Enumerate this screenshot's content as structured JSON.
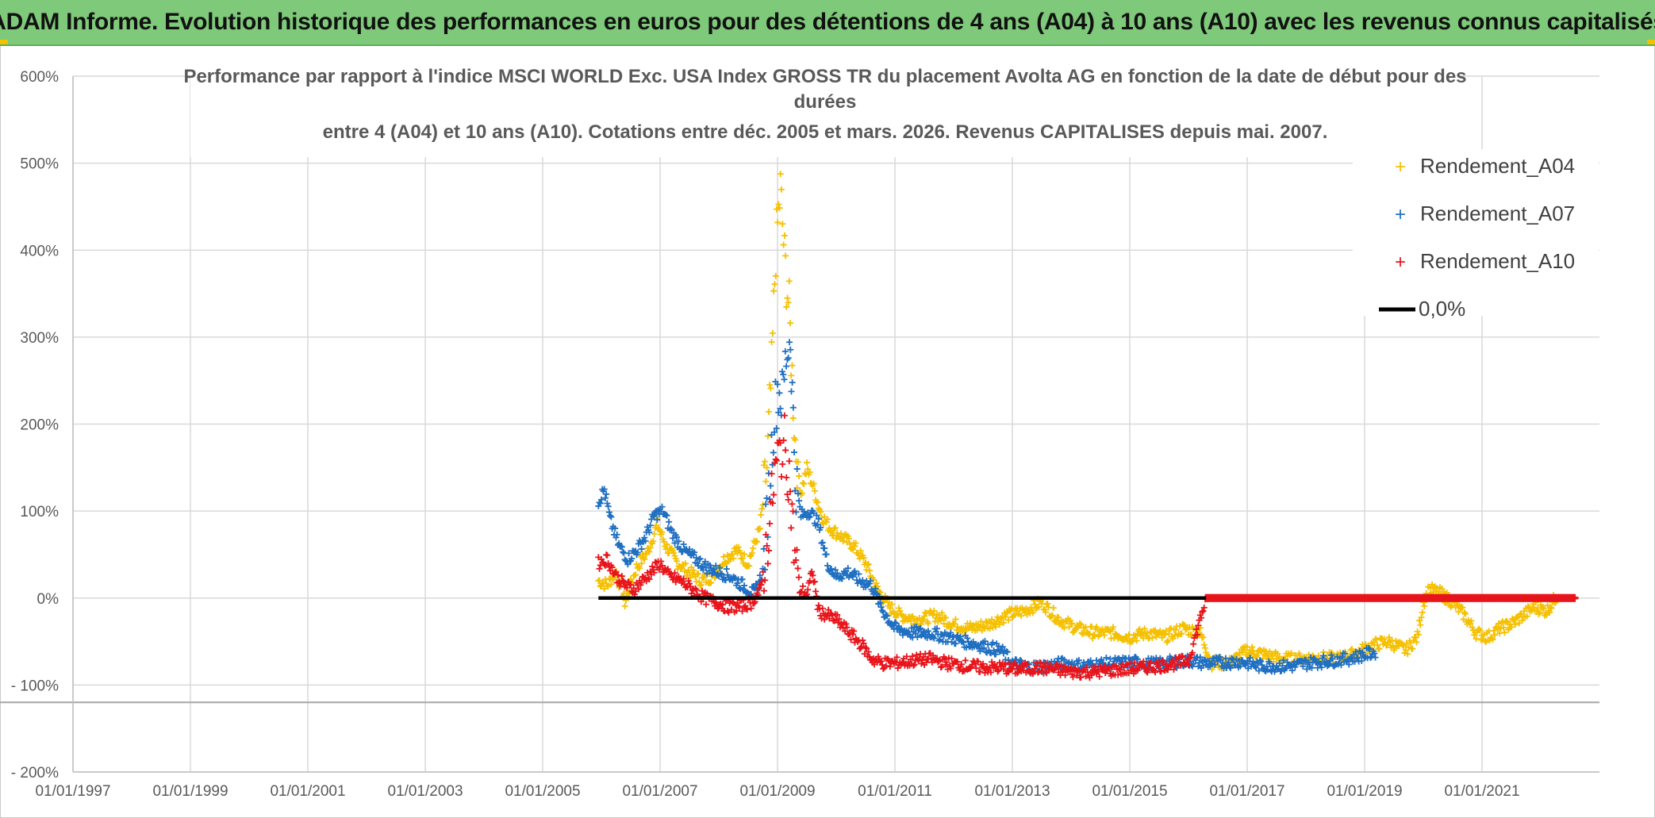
{
  "header": {
    "banner": "ADAM Informe. Evolution historique des performances en euros pour des détentions de 4 ans (A04) à 10 ans (A10) avec les revenus connus capitalisés"
  },
  "colors": {
    "banner_bg": "#7fc97a",
    "a04": "#f5c000",
    "a07": "#1f6fc2",
    "a10": "#e8141b",
    "zero": "#000000",
    "grid": "#d9d9d9"
  },
  "chart_data": {
    "type": "scatter",
    "title_lines": [
      "Performance par rapport à l'indice MSCI WORLD Exc. USA Index GROSS TR  du placement Avolta AG en fonction de la date de début pour des",
      "durées",
      "entre 4 (A04) et 10 ans (A10). Cotations entre déc. 2005 et mars. 2026. Revenus CAPITALISES depuis mai. 2007."
    ],
    "xlabel": "",
    "ylabel": "",
    "x_range_years": [
      1997.0,
      2023.0
    ],
    "ylim": [
      -200,
      600
    ],
    "y_ticks": [
      {
        "value": 600,
        "label": "600%"
      },
      {
        "value": 500,
        "label": "500%"
      },
      {
        "value": 400,
        "label": "400%"
      },
      {
        "value": 300,
        "label": "300%"
      },
      {
        "value": 200,
        "label": "200%"
      },
      {
        "value": 100,
        "label": "100%"
      },
      {
        "value": 0,
        "label": "0%"
      },
      {
        "value": -100,
        "label": "- 100%"
      },
      {
        "value": -200,
        "label": "- 200%"
      }
    ],
    "x_ticks": [
      {
        "year": 1997,
        "label": "01/01/1997"
      },
      {
        "year": 1999,
        "label": "01/01/1999"
      },
      {
        "year": 2001,
        "label": "01/01/2001"
      },
      {
        "year": 2003,
        "label": "01/01/2003"
      },
      {
        "year": 2005,
        "label": "01/01/2005"
      },
      {
        "year": 2007,
        "label": "01/01/2007"
      },
      {
        "year": 2009,
        "label": "01/01/2009"
      },
      {
        "year": 2011,
        "label": "01/01/2011"
      },
      {
        "year": 2013,
        "label": "01/01/2013"
      },
      {
        "year": 2015,
        "label": "01/01/2015"
      },
      {
        "year": 2017,
        "label": "01/01/2017"
      },
      {
        "year": 2019,
        "label": "01/01/2019"
      },
      {
        "year": 2021,
        "label": "01/01/2021"
      }
    ],
    "reference_line_value": -120,
    "legend_position": "top-right",
    "series": [
      {
        "name": "Rendement_A04",
        "color_key": "a04",
        "points": [
          [
            2005.95,
            20
          ],
          [
            2006.1,
            15
          ],
          [
            2006.25,
            30
          ],
          [
            2006.4,
            -5
          ],
          [
            2006.6,
            35
          ],
          [
            2006.8,
            55
          ],
          [
            2006.95,
            85
          ],
          [
            2007.1,
            60
          ],
          [
            2007.3,
            40
          ],
          [
            2007.5,
            30
          ],
          [
            2007.7,
            20
          ],
          [
            2007.9,
            25
          ],
          [
            2008.1,
            45
          ],
          [
            2008.3,
            55
          ],
          [
            2008.5,
            40
          ],
          [
            2008.7,
            80
          ],
          [
            2008.82,
            150
          ],
          [
            2008.9,
            260
          ],
          [
            2008.97,
            400
          ],
          [
            2009.05,
            470
          ],
          [
            2009.12,
            390
          ],
          [
            2009.2,
            330
          ],
          [
            2009.3,
            180
          ],
          [
            2009.4,
            120
          ],
          [
            2009.5,
            150
          ],
          [
            2009.6,
            130
          ],
          [
            2009.75,
            95
          ],
          [
            2009.9,
            80
          ],
          [
            2010.1,
            70
          ],
          [
            2010.3,
            60
          ],
          [
            2010.5,
            40
          ],
          [
            2010.7,
            10
          ],
          [
            2010.9,
            -10
          ],
          [
            2011.1,
            -20
          ],
          [
            2011.4,
            -25
          ],
          [
            2011.7,
            -20
          ],
          [
            2012.0,
            -30
          ],
          [
            2012.3,
            -35
          ],
          [
            2012.6,
            -30
          ],
          [
            2012.9,
            -20
          ],
          [
            2013.2,
            -15
          ],
          [
            2013.5,
            -5
          ],
          [
            2013.8,
            -25
          ],
          [
            2014.1,
            -35
          ],
          [
            2014.4,
            -40
          ],
          [
            2014.7,
            -40
          ],
          [
            2015.0,
            -45
          ],
          [
            2015.3,
            -40
          ],
          [
            2015.6,
            -45
          ],
          [
            2015.9,
            -35
          ],
          [
            2016.2,
            -40
          ],
          [
            2016.4,
            -75
          ],
          [
            2016.7,
            -75
          ],
          [
            2017.0,
            -60
          ],
          [
            2017.3,
            -65
          ],
          [
            2017.6,
            -70
          ],
          [
            2017.9,
            -70
          ],
          [
            2018.2,
            -68
          ],
          [
            2018.5,
            -70
          ],
          [
            2018.8,
            -65
          ],
          [
            2019.1,
            -55
          ],
          [
            2019.4,
            -50
          ],
          [
            2019.7,
            -60
          ],
          [
            2019.9,
            -45
          ],
          [
            2020.0,
            -5
          ],
          [
            2020.1,
            10
          ],
          [
            2020.3,
            5
          ],
          [
            2020.5,
            -5
          ],
          [
            2020.7,
            -20
          ],
          [
            2020.9,
            -40
          ],
          [
            2021.1,
            -45
          ],
          [
            2021.3,
            -35
          ],
          [
            2021.5,
            -30
          ],
          [
            2021.7,
            -20
          ],
          [
            2021.9,
            -10
          ],
          [
            2022.1,
            -15
          ],
          [
            2022.3,
            5
          ]
        ]
      },
      {
        "name": "Rendement_A07",
        "color_key": "a07",
        "points": [
          [
            2005.95,
            110
          ],
          [
            2006.05,
            125
          ],
          [
            2006.15,
            90
          ],
          [
            2006.3,
            60
          ],
          [
            2006.45,
            45
          ],
          [
            2006.6,
            55
          ],
          [
            2006.75,
            70
          ],
          [
            2006.9,
            95
          ],
          [
            2007.05,
            100
          ],
          [
            2007.2,
            75
          ],
          [
            2007.4,
            55
          ],
          [
            2007.6,
            45
          ],
          [
            2007.8,
            35
          ],
          [
            2008.0,
            30
          ],
          [
            2008.2,
            25
          ],
          [
            2008.4,
            15
          ],
          [
            2008.6,
            5
          ],
          [
            2008.75,
            30
          ],
          [
            2008.85,
            120
          ],
          [
            2008.93,
            200
          ],
          [
            2009.0,
            240
          ],
          [
            2009.08,
            230
          ],
          [
            2009.15,
            280
          ],
          [
            2009.22,
            300
          ],
          [
            2009.3,
            140
          ],
          [
            2009.4,
            95
          ],
          [
            2009.55,
            100
          ],
          [
            2009.7,
            85
          ],
          [
            2009.85,
            40
          ],
          [
            2010.0,
            25
          ],
          [
            2010.2,
            30
          ],
          [
            2010.4,
            20
          ],
          [
            2010.6,
            15
          ],
          [
            2010.8,
            -15
          ],
          [
            2011.0,
            -35
          ],
          [
            2011.3,
            -40
          ],
          [
            2011.6,
            -40
          ],
          [
            2011.9,
            -45
          ],
          [
            2012.2,
            -50
          ],
          [
            2012.5,
            -55
          ],
          [
            2012.8,
            -60
          ],
          [
            2013.0,
            -75
          ],
          [
            2013.3,
            -80
          ],
          [
            2013.6,
            -78
          ],
          [
            2013.9,
            -75
          ],
          [
            2014.2,
            -78
          ],
          [
            2014.5,
            -76
          ],
          [
            2014.8,
            -75
          ],
          [
            2015.1,
            -74
          ],
          [
            2015.4,
            -76
          ],
          [
            2015.7,
            -74
          ],
          [
            2016.0,
            -72
          ],
          [
            2016.3,
            -75
          ],
          [
            2016.6,
            -74
          ],
          [
            2016.9,
            -73
          ],
          [
            2017.2,
            -78
          ],
          [
            2017.5,
            -78
          ],
          [
            2017.8,
            -78
          ],
          [
            2018.1,
            -74
          ],
          [
            2018.4,
            -72
          ],
          [
            2018.7,
            -70
          ],
          [
            2019.0,
            -65
          ],
          [
            2019.2,
            -62
          ]
        ]
      },
      {
        "name": "Rendement_A10",
        "color_key": "a10",
        "points": [
          [
            2005.95,
            40
          ],
          [
            2006.1,
            45
          ],
          [
            2006.25,
            25
          ],
          [
            2006.4,
            15
          ],
          [
            2006.55,
            10
          ],
          [
            2006.7,
            20
          ],
          [
            2006.85,
            30
          ],
          [
            2007.0,
            40
          ],
          [
            2007.15,
            25
          ],
          [
            2007.35,
            20
          ],
          [
            2007.55,
            10
          ],
          [
            2007.75,
            0
          ],
          [
            2007.95,
            -5
          ],
          [
            2008.15,
            -10
          ],
          [
            2008.35,
            -10
          ],
          [
            2008.55,
            -5
          ],
          [
            2008.72,
            10
          ],
          [
            2008.82,
            60
          ],
          [
            2008.9,
            110
          ],
          [
            2008.97,
            150
          ],
          [
            2009.05,
            170
          ],
          [
            2009.12,
            175
          ],
          [
            2009.2,
            140
          ],
          [
            2009.28,
            60
          ],
          [
            2009.38,
            10
          ],
          [
            2009.5,
            5
          ],
          [
            2009.6,
            30
          ],
          [
            2009.7,
            -15
          ],
          [
            2009.85,
            -20
          ],
          [
            2010.0,
            -25
          ],
          [
            2010.15,
            -35
          ],
          [
            2010.3,
            -45
          ],
          [
            2010.45,
            -55
          ],
          [
            2010.6,
            -70
          ],
          [
            2010.8,
            -75
          ],
          [
            2011.0,
            -75
          ],
          [
            2011.3,
            -72
          ],
          [
            2011.6,
            -70
          ],
          [
            2011.9,
            -75
          ],
          [
            2012.2,
            -78
          ],
          [
            2012.5,
            -80
          ],
          [
            2012.8,
            -80
          ],
          [
            2013.1,
            -82
          ],
          [
            2013.4,
            -80
          ],
          [
            2013.7,
            -82
          ],
          [
            2014.0,
            -85
          ],
          [
            2014.3,
            -85
          ],
          [
            2014.6,
            -84
          ],
          [
            2014.9,
            -82
          ],
          [
            2015.2,
            -80
          ],
          [
            2015.5,
            -78
          ],
          [
            2015.8,
            -75
          ],
          [
            2016.0,
            -72
          ],
          [
            2016.3,
            0
          ],
          [
            2017.0,
            0
          ],
          [
            2018.0,
            0
          ],
          [
            2019.0,
            0
          ],
          [
            2020.0,
            0
          ],
          [
            2021.0,
            0
          ],
          [
            2022.0,
            0
          ],
          [
            2022.6,
            0
          ]
        ]
      }
    ],
    "zero_line": {
      "name": "0,0%",
      "from_year": 2005.95,
      "to_year": 2016.3,
      "value": 0
    }
  }
}
